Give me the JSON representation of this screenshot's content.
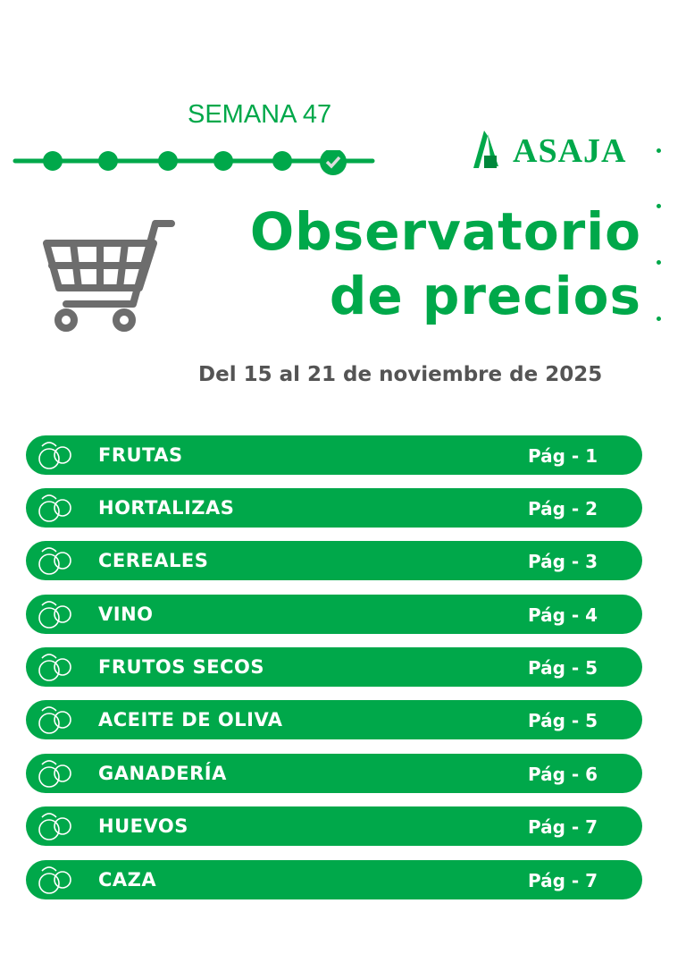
{
  "header": {
    "week": "SEMANA 47",
    "week_progress": {
      "total_steps": 6,
      "completed_step": 6
    },
    "logo": "ASAJA",
    "title_line1": "Observatorio",
    "title_line2": "de precios",
    "date_range": "Del 15 al 21 de noviembre de 2025"
  },
  "colors": {
    "brand_green": "#00a84a",
    "text_gray": "#545454"
  },
  "sections": [
    {
      "label": "FRUTAS",
      "page": "Pág - 1",
      "icon": "fruits-icon"
    },
    {
      "label": "HORTALIZAS",
      "page": "Pág - 2",
      "icon": "vegetables-icon"
    },
    {
      "label": "CEREALES",
      "page": "Pág - 3",
      "icon": "wheat-icon"
    },
    {
      "label": "VINO",
      "page": "Pág - 4",
      "icon": "wine-grapes-icon"
    },
    {
      "label": "FRUTOS SECOS",
      "page": "Pág - 5",
      "icon": "nuts-icon"
    },
    {
      "label": "ACEITE DE OLIVA",
      "page": "Pág - 5",
      "icon": "olive-oil-icon"
    },
    {
      "label": "GANADERÍA",
      "page": "Pág - 6",
      "icon": "livestock-icon"
    },
    {
      "label": "HUEVOS",
      "page": "Pág - 7",
      "icon": "eggs-icon"
    },
    {
      "label": "CAZA",
      "page": "Pág - 7",
      "icon": "deer-icon"
    }
  ]
}
